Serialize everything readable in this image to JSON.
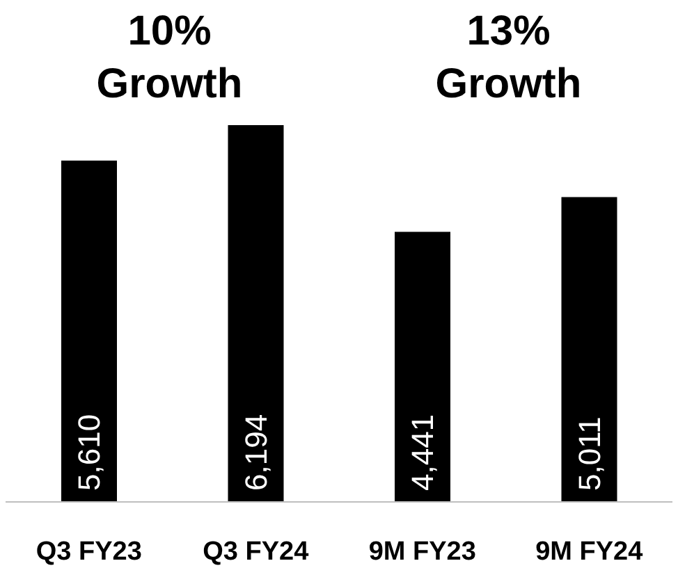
{
  "chart_data": {
    "type": "bar",
    "categories": [
      "Q3 FY23",
      "Q3 FY24",
      "9M FY23",
      "9M FY24"
    ],
    "values": [
      5610,
      6194,
      4441,
      5011
    ],
    "color": "#000000",
    "value_labels": [
      "5,610",
      "6,194",
      "4,441",
      "5,011"
    ],
    "annotations": [
      "10%\nGrowth",
      "13%\nGrowth"
    ]
  }
}
